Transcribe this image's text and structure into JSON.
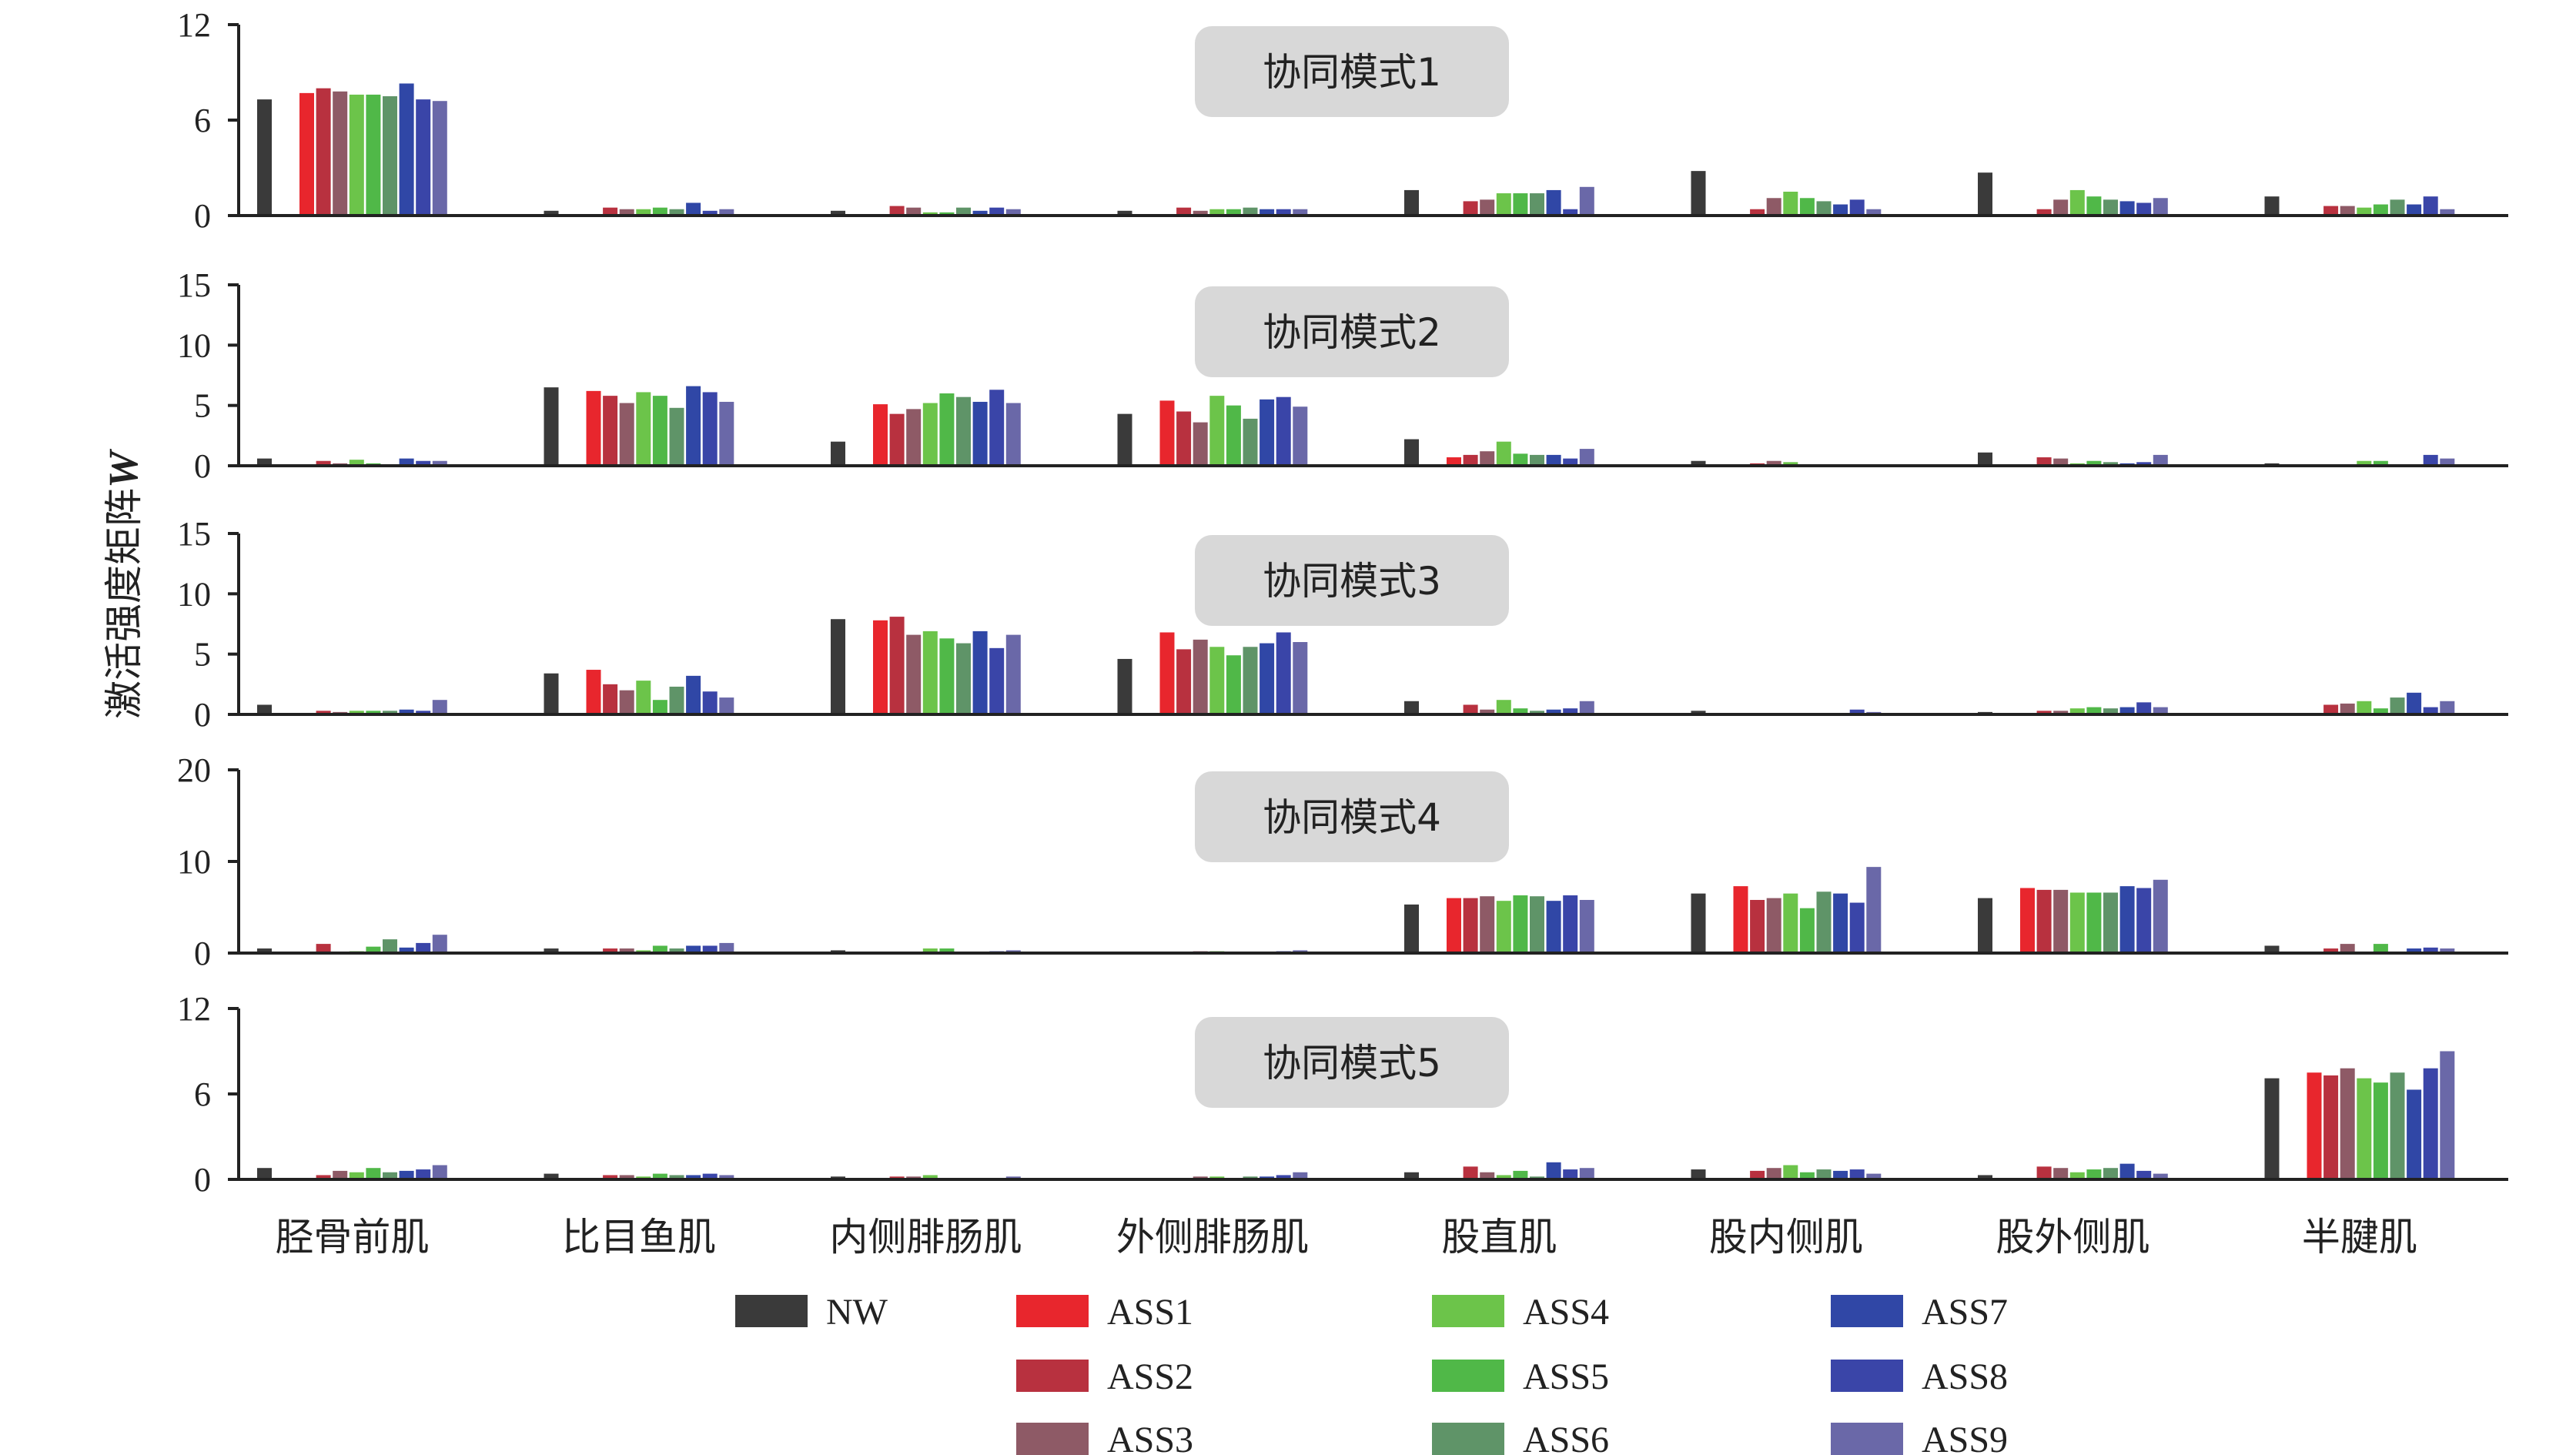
{
  "chart_data": {
    "type": "bar",
    "ylabel": "激活强度矩阵",
    "ylabel_symbol": "W",
    "categories": [
      "胫骨前肌",
      "比目鱼肌",
      "内侧腓肠肌",
      "外侧腓肠肌",
      "股直肌",
      "股内侧肌",
      "股外侧肌",
      "半腱肌"
    ],
    "groups": [
      "NW",
      "ASS1",
      "ASS2",
      "ASS3",
      "ASS4",
      "ASS5",
      "ASS6",
      "ASS7",
      "ASS8",
      "ASS9"
    ],
    "colors": [
      "#3a3a3a",
      "#e8262d",
      "#b8313f",
      "#8e5a66",
      "#6cc44a",
      "#50b848",
      "#5f9468",
      "#3047a6",
      "#3a45a8",
      "#6a68a8"
    ],
    "legend": {
      "placement": "bottom",
      "columns": [
        [
          "NW"
        ],
        [
          "ASS1",
          "ASS2",
          "ASS3"
        ],
        [
          "ASS4",
          "ASS5",
          "ASS6"
        ],
        [
          "ASS7",
          "ASS8",
          "ASS9"
        ]
      ]
    },
    "panels": [
      {
        "title": "协同模式1",
        "ylim": [
          0,
          12
        ],
        "yticks": [
          0,
          6,
          12
        ],
        "values": [
          [
            7.3,
            7.7,
            8.0,
            7.8,
            7.6,
            7.6,
            7.5,
            8.3,
            7.3,
            7.2
          ],
          [
            0.3,
            0,
            0.5,
            0.4,
            0.4,
            0.5,
            0.4,
            0.8,
            0.3,
            0.4
          ],
          [
            0.3,
            0,
            0.6,
            0.5,
            0.2,
            0.2,
            0.5,
            0.3,
            0.5,
            0.4
          ],
          [
            0.3,
            0,
            0.5,
            0.3,
            0.4,
            0.4,
            0.5,
            0.4,
            0.4,
            0.4
          ],
          [
            1.6,
            0,
            0.9,
            1.0,
            1.4,
            1.4,
            1.4,
            1.6,
            0.4,
            1.8
          ],
          [
            2.8,
            0,
            0.4,
            1.1,
            1.5,
            1.1,
            0.9,
            0.7,
            1.0,
            0.4
          ],
          [
            2.7,
            0,
            0.4,
            1.0,
            1.6,
            1.2,
            1.0,
            0.9,
            0.8,
            1.1
          ],
          [
            1.2,
            0,
            0.6,
            0.6,
            0.5,
            0.7,
            1.0,
            0.7,
            1.2,
            0.4
          ]
        ]
      },
      {
        "title": "协同模式2",
        "ylim": [
          0,
          15
        ],
        "yticks": [
          0,
          5,
          10,
          15
        ],
        "values": [
          [
            0.6,
            0,
            0.4,
            0.2,
            0.5,
            0.2,
            0,
            0.6,
            0.4,
            0.4
          ],
          [
            6.5,
            6.2,
            5.8,
            5.2,
            6.1,
            5.8,
            4.8,
            6.6,
            6.1,
            5.3
          ],
          [
            2.0,
            5.1,
            4.3,
            4.7,
            5.2,
            6.0,
            5.7,
            5.3,
            6.3,
            5.2
          ],
          [
            4.3,
            5.4,
            4.5,
            3.6,
            5.8,
            5.0,
            3.9,
            5.5,
            5.7,
            4.9
          ],
          [
            2.2,
            0.7,
            0.9,
            1.2,
            2.0,
            1.0,
            0.9,
            0.9,
            0.6,
            1.4
          ],
          [
            0.4,
            0,
            0.2,
            0.4,
            0.3,
            0.1,
            0.1,
            0.1,
            0,
            0
          ],
          [
            1.1,
            0,
            0.7,
            0.6,
            0.2,
            0.4,
            0.3,
            0.2,
            0.3,
            0.9
          ],
          [
            0.2,
            0,
            0,
            0,
            0.4,
            0.4,
            0,
            0,
            0.9,
            0.6
          ]
        ]
      },
      {
        "title": "协同模式3",
        "ylim": [
          0,
          15
        ],
        "yticks": [
          0,
          5,
          10,
          15
        ],
        "values": [
          [
            0.8,
            0,
            0.3,
            0.2,
            0.3,
            0.3,
            0.3,
            0.4,
            0.3,
            1.2
          ],
          [
            3.4,
            3.7,
            2.5,
            2.0,
            2.8,
            1.2,
            2.3,
            3.2,
            1.9,
            1.4
          ],
          [
            7.9,
            7.8,
            8.1,
            6.6,
            6.9,
            6.3,
            5.9,
            6.9,
            5.5,
            6.6
          ],
          [
            4.6,
            6.8,
            5.4,
            6.2,
            5.6,
            4.9,
            5.6,
            5.9,
            6.8,
            6.0
          ],
          [
            1.1,
            0,
            0.8,
            0.4,
            1.2,
            0.5,
            0.3,
            0.4,
            0.5,
            1.1
          ],
          [
            0.3,
            0,
            0,
            0,
            0,
            0,
            0,
            0,
            0.4,
            0.2
          ],
          [
            0.2,
            0,
            0.3,
            0.3,
            0.5,
            0.6,
            0.5,
            0.6,
            1.0,
            0.6
          ],
          [
            0,
            0,
            0.8,
            0.9,
            1.1,
            0.5,
            1.4,
            1.8,
            0.6,
            1.1
          ]
        ]
      },
      {
        "title": "协同模式4",
        "ylim": [
          0,
          20
        ],
        "yticks": [
          0,
          10,
          20
        ],
        "values": [
          [
            0.5,
            0,
            1.0,
            0,
            0.2,
            0.7,
            1.5,
            0.6,
            1.1,
            2.0
          ],
          [
            0.5,
            0,
            0.5,
            0.5,
            0.3,
            0.8,
            0.5,
            0.8,
            0.8,
            1.1
          ],
          [
            0.3,
            0,
            0,
            0,
            0.5,
            0.5,
            0,
            0,
            0.2,
            0.3
          ],
          [
            0,
            0,
            0,
            0.2,
            0.2,
            0,
            0,
            0,
            0.2,
            0.3
          ],
          [
            5.3,
            6.0,
            6.0,
            6.2,
            5.7,
            6.3,
            6.2,
            5.7,
            6.3,
            5.8
          ],
          [
            6.5,
            7.3,
            5.8,
            6.0,
            6.5,
            4.9,
            6.7,
            6.5,
            5.5,
            9.4
          ],
          [
            6.0,
            7.1,
            6.9,
            6.9,
            6.6,
            6.6,
            6.6,
            7.3,
            7.1,
            8.0
          ],
          [
            0.8,
            0,
            0.5,
            1.0,
            0,
            1.0,
            0,
            0.5,
            0.6,
            0.5
          ]
        ]
      },
      {
        "title": "协同模式5",
        "ylim": [
          0,
          12
        ],
        "yticks": [
          0,
          6,
          12
        ],
        "values": [
          [
            0.8,
            0,
            0.3,
            0.6,
            0.5,
            0.8,
            0.5,
            0.6,
            0.7,
            1.0
          ],
          [
            0.4,
            0,
            0.3,
            0.3,
            0.2,
            0.4,
            0.3,
            0.3,
            0.4,
            0.3
          ],
          [
            0.2,
            0,
            0.2,
            0.2,
            0.3,
            0,
            0,
            0,
            0,
            0.2
          ],
          [
            0,
            0,
            0,
            0.2,
            0.2,
            0,
            0.2,
            0.2,
            0.3,
            0.5
          ],
          [
            0.5,
            0,
            0.9,
            0.5,
            0.3,
            0.6,
            0.2,
            1.2,
            0.7,
            0.8
          ],
          [
            0.7,
            0,
            0.6,
            0.8,
            1.0,
            0.5,
            0.7,
            0.6,
            0.7,
            0.4
          ],
          [
            0.3,
            0,
            0.9,
            0.8,
            0.5,
            0.7,
            0.8,
            1.1,
            0.6,
            0.4
          ],
          [
            7.1,
            7.5,
            7.3,
            7.8,
            7.1,
            6.8,
            7.5,
            6.3,
            7.8,
            9.0
          ]
        ]
      }
    ]
  }
}
